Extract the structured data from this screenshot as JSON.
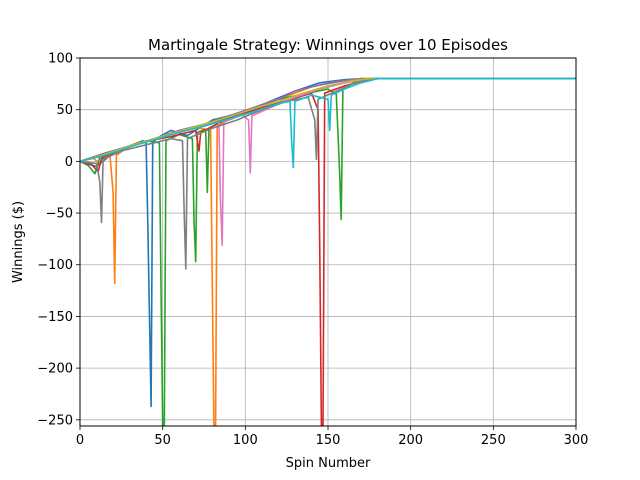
{
  "chart_data": {
    "type": "line",
    "title": "Martingale Strategy: Winnings over 10 Episodes",
    "xlabel": "Spin Number",
    "ylabel": "Winnings ($)",
    "xlim": [
      0,
      300
    ],
    "ylim": [
      -256,
      100
    ],
    "xticks": [
      0,
      50,
      100,
      150,
      200,
      250,
      300
    ],
    "yticks": [
      -250,
      -200,
      -150,
      -100,
      -50,
      0,
      50,
      100
    ],
    "ytick_labels": [
      "−250",
      "−200",
      "−150",
      "−100",
      "−50",
      "0",
      "50",
      "100"
    ],
    "grid": true,
    "legend": false,
    "series": [
      {
        "color": "#1f77b4",
        "points": [
          [
            0,
            0
          ],
          [
            10,
            -5
          ],
          [
            20,
            8
          ],
          [
            30,
            14
          ],
          [
            38,
            20
          ],
          [
            40,
            18
          ],
          [
            41,
            -60
          ],
          [
            43,
            -237
          ],
          [
            44,
            16
          ],
          [
            46,
            22
          ],
          [
            55,
            30
          ],
          [
            65,
            25
          ],
          [
            80,
            40
          ],
          [
            100,
            48
          ],
          [
            115,
            58
          ],
          [
            130,
            68
          ],
          [
            145,
            76
          ],
          [
            160,
            79
          ],
          [
            170,
            80
          ],
          [
            300,
            80
          ]
        ]
      },
      {
        "color": "#ff7f0e",
        "points": [
          [
            0,
            0
          ],
          [
            8,
            3
          ],
          [
            12,
            -2
          ],
          [
            15,
            6
          ],
          [
            18,
            8
          ],
          [
            20,
            -30
          ],
          [
            21,
            -118
          ],
          [
            22,
            6
          ],
          [
            30,
            15
          ],
          [
            45,
            22
          ],
          [
            60,
            28
          ],
          [
            70,
            33
          ],
          [
            79,
            30
          ],
          [
            80,
            -120
          ],
          [
            81,
            -256
          ],
          [
            82,
            -256
          ],
          [
            83,
            34
          ],
          [
            95,
            45
          ],
          [
            110,
            55
          ],
          [
            125,
            63
          ],
          [
            140,
            72
          ],
          [
            155,
            77
          ],
          [
            170,
            80
          ],
          [
            300,
            80
          ]
        ]
      },
      {
        "color": "#2ca02c",
        "points": [
          [
            0,
            0
          ],
          [
            5,
            -4
          ],
          [
            9,
            -12
          ],
          [
            12,
            4
          ],
          [
            25,
            12
          ],
          [
            40,
            20
          ],
          [
            48,
            18
          ],
          [
            49,
            -120
          ],
          [
            50,
            -256
          ],
          [
            51,
            -256
          ],
          [
            52,
            20
          ],
          [
            60,
            26
          ],
          [
            68,
            22
          ],
          [
            69,
            -60
          ],
          [
            70,
            -97
          ],
          [
            71,
            28
          ],
          [
            76,
            31
          ],
          [
            77,
            -30
          ],
          [
            78,
            32
          ],
          [
            90,
            42
          ],
          [
            105,
            52
          ],
          [
            120,
            60
          ],
          [
            135,
            65
          ],
          [
            150,
            70
          ],
          [
            155,
            65
          ],
          [
            157,
            -10
          ],
          [
            158,
            -56
          ],
          [
            159,
            70
          ],
          [
            170,
            80
          ],
          [
            300,
            80
          ]
        ]
      },
      {
        "color": "#d62728",
        "points": [
          [
            0,
            0
          ],
          [
            7,
            -3
          ],
          [
            11,
            -10
          ],
          [
            13,
            3
          ],
          [
            25,
            12
          ],
          [
            35,
            18
          ],
          [
            55,
            24
          ],
          [
            70,
            30
          ],
          [
            72,
            10
          ],
          [
            73,
            28
          ],
          [
            90,
            42
          ],
          [
            110,
            52
          ],
          [
            128,
            60
          ],
          [
            140,
            66
          ],
          [
            144,
            50
          ],
          [
            145,
            -80
          ],
          [
            146,
            -256
          ],
          [
            147,
            -256
          ],
          [
            148,
            66
          ],
          [
            160,
            73
          ],
          [
            172,
            78
          ],
          [
            180,
            80
          ],
          [
            300,
            80
          ]
        ]
      },
      {
        "color": "#9467bd",
        "points": [
          [
            0,
            0
          ],
          [
            15,
            8
          ],
          [
            30,
            15
          ],
          [
            45,
            22
          ],
          [
            60,
            30
          ],
          [
            75,
            36
          ],
          [
            90,
            44
          ],
          [
            105,
            52
          ],
          [
            120,
            60
          ],
          [
            130,
            68
          ],
          [
            145,
            74
          ],
          [
            160,
            78
          ],
          [
            175,
            80
          ],
          [
            300,
            80
          ]
        ]
      },
      {
        "color": "#8c564b",
        "points": [
          [
            0,
            0
          ],
          [
            12,
            6
          ],
          [
            25,
            12
          ],
          [
            40,
            19
          ],
          [
            55,
            26
          ],
          [
            70,
            33
          ],
          [
            85,
            40
          ],
          [
            100,
            46
          ],
          [
            115,
            53
          ],
          [
            130,
            61
          ],
          [
            145,
            70
          ],
          [
            160,
            76
          ],
          [
            175,
            80
          ],
          [
            300,
            80
          ]
        ]
      },
      {
        "color": "#e377c2",
        "points": [
          [
            0,
            0
          ],
          [
            15,
            6
          ],
          [
            30,
            14
          ],
          [
            45,
            22
          ],
          [
            60,
            28
          ],
          [
            75,
            35
          ],
          [
            84,
            38
          ],
          [
            85,
            -40
          ],
          [
            86,
            -81
          ],
          [
            87,
            38
          ],
          [
            98,
            45
          ],
          [
            102,
            40
          ],
          [
            103,
            -11
          ],
          [
            104,
            44
          ],
          [
            115,
            52
          ],
          [
            130,
            62
          ],
          [
            145,
            70
          ],
          [
            160,
            76
          ],
          [
            175,
            80
          ],
          [
            300,
            80
          ]
        ]
      },
      {
        "color": "#7f7f7f",
        "points": [
          [
            0,
            0
          ],
          [
            10,
            -2
          ],
          [
            12,
            -20
          ],
          [
            13,
            -59
          ],
          [
            14,
            2
          ],
          [
            25,
            10
          ],
          [
            40,
            16
          ],
          [
            55,
            22
          ],
          [
            62,
            20
          ],
          [
            63,
            -50
          ],
          [
            64,
            -104
          ],
          [
            65,
            22
          ],
          [
            80,
            32
          ],
          [
            95,
            40
          ],
          [
            110,
            50
          ],
          [
            125,
            58
          ],
          [
            138,
            62
          ],
          [
            142,
            40
          ],
          [
            143,
            2
          ],
          [
            144,
            60
          ],
          [
            155,
            68
          ],
          [
            165,
            75
          ],
          [
            175,
            80
          ],
          [
            300,
            80
          ]
        ]
      },
      {
        "color": "#bcbd22",
        "points": [
          [
            0,
            0
          ],
          [
            15,
            7
          ],
          [
            30,
            15
          ],
          [
            45,
            22
          ],
          [
            60,
            29
          ],
          [
            75,
            36
          ],
          [
            90,
            43
          ],
          [
            105,
            51
          ],
          [
            120,
            58
          ],
          [
            135,
            66
          ],
          [
            150,
            73
          ],
          [
            165,
            78
          ],
          [
            175,
            80
          ],
          [
            300,
            80
          ]
        ]
      },
      {
        "color": "#17becf",
        "points": [
          [
            0,
            0
          ],
          [
            15,
            6
          ],
          [
            30,
            14
          ],
          [
            45,
            21
          ],
          [
            60,
            28
          ],
          [
            75,
            34
          ],
          [
            90,
            41
          ],
          [
            105,
            48
          ],
          [
            120,
            56
          ],
          [
            127,
            58
          ],
          [
            128,
            20
          ],
          [
            129,
            -6
          ],
          [
            130,
            58
          ],
          [
            140,
            64
          ],
          [
            150,
            60
          ],
          [
            151,
            30
          ],
          [
            152,
            64
          ],
          [
            160,
            70
          ],
          [
            170,
            76
          ],
          [
            180,
            80
          ],
          [
            300,
            80
          ]
        ]
      }
    ]
  }
}
